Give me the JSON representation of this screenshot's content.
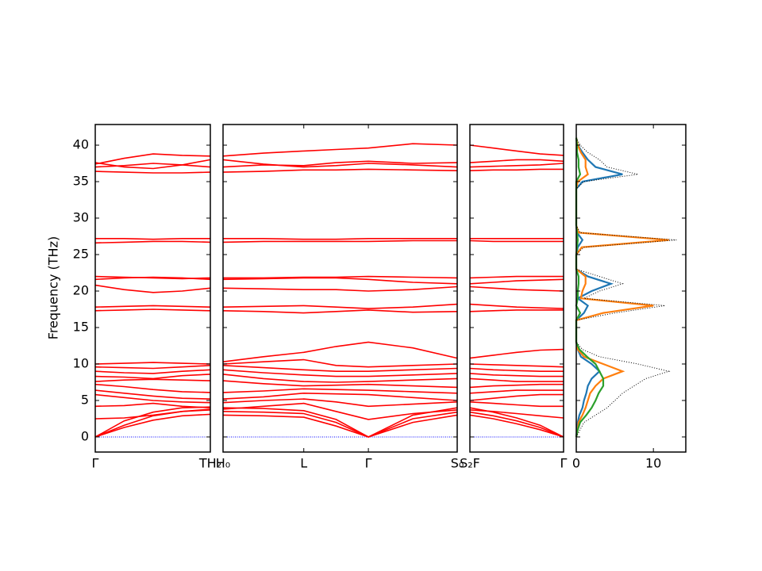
{
  "chart_data": [
    {
      "type": "line",
      "y_label": "Frequency (THz)",
      "xlim": [
        0,
        1.43
      ],
      "xticks": [
        {
          "value": 0,
          "label": "Γ"
        },
        {
          "value": 1.43,
          "label": "TH₂"
        }
      ],
      "ylim": [
        -2.07,
        42.83
      ],
      "yticks": [
        0,
        5,
        10,
        15,
        20,
        25,
        30,
        35,
        40
      ],
      "hline": 0,
      "hline_color": "#0000ff",
      "x": [
        0,
        0.36,
        0.72,
        1.08,
        1.43
      ],
      "series": [
        {
          "color": "#ff0000",
          "values": [
            0,
            1.3,
            2.3,
            2.9,
            3.1
          ]
        },
        {
          "color": "#ff0000",
          "values": [
            0,
            1.6,
            2.9,
            3.5,
            3.7
          ]
        },
        {
          "color": "#ff0000",
          "values": [
            0,
            2.2,
            3.4,
            4.0,
            4.1
          ]
        },
        {
          "color": "#ff0000",
          "values": [
            2.5,
            2.6,
            3.0,
            3.5,
            3.8
          ]
        },
        {
          "color": "#ff0000",
          "values": [
            4.2,
            4.3,
            4.6,
            4.2,
            4.0
          ]
        },
        {
          "color": "#ff0000",
          "values": [
            5.8,
            5.4,
            5.0,
            4.8,
            4.7
          ]
        },
        {
          "color": "#ff0000",
          "values": [
            6.4,
            6.0,
            5.6,
            5.3,
            5.2
          ]
        },
        {
          "color": "#ff0000",
          "values": [
            7.2,
            6.9,
            6.5,
            6.2,
            6.1
          ]
        },
        {
          "color": "#ff0000",
          "values": [
            7.6,
            7.8,
            7.9,
            7.8,
            7.7
          ]
        },
        {
          "color": "#ff0000",
          "values": [
            8.3,
            8.2,
            8.0,
            8.4,
            8.6
          ]
        },
        {
          "color": "#ff0000",
          "values": [
            9.0,
            8.8,
            8.7,
            9.0,
            9.2
          ]
        },
        {
          "color": "#ff0000",
          "values": [
            9.6,
            9.5,
            9.4,
            9.6,
            9.8
          ]
        },
        {
          "color": "#ff0000",
          "values": [
            10.0,
            10.1,
            10.2,
            10.1,
            10.0
          ]
        },
        {
          "color": "#ff0000",
          "values": [
            17.3,
            17.4,
            17.5,
            17.4,
            17.3
          ]
        },
        {
          "color": "#ff0000",
          "values": [
            17.8,
            17.9,
            18.0,
            17.9,
            17.8
          ]
        },
        {
          "color": "#ff0000",
          "values": [
            20.8,
            20.2,
            19.8,
            20.0,
            20.4
          ]
        },
        {
          "color": "#ff0000",
          "values": [
            21.6,
            21.8,
            21.9,
            21.8,
            21.6
          ]
        },
        {
          "color": "#ff0000",
          "values": [
            22.0,
            21.9,
            21.8,
            21.7,
            21.8
          ]
        },
        {
          "color": "#ff0000",
          "values": [
            26.6,
            26.7,
            26.8,
            26.8,
            26.7
          ]
        },
        {
          "color": "#ff0000",
          "values": [
            27.2,
            27.2,
            27.1,
            27.2,
            27.2
          ]
        },
        {
          "color": "#ff0000",
          "values": [
            36.4,
            36.3,
            36.2,
            36.2,
            36.3
          ]
        },
        {
          "color": "#ff0000",
          "values": [
            37.6,
            37.0,
            36.8,
            37.3,
            38.0
          ]
        },
        {
          "color": "#ff0000",
          "values": [
            37.4,
            38.2,
            38.8,
            38.6,
            38.5
          ]
        },
        {
          "color": "#ff0000",
          "values": [
            37.0,
            37.2,
            37.5,
            37.3,
            37.0
          ]
        }
      ]
    },
    {
      "type": "line",
      "xlim": [
        0,
        2.9
      ],
      "xticks": [
        {
          "value": 0,
          "label": "H₀"
        },
        {
          "value": 1.0,
          "label": "L"
        },
        {
          "value": 1.8,
          "label": "Γ"
        },
        {
          "value": 2.9,
          "label": "S₀"
        }
      ],
      "ylim": [
        -2.07,
        42.83
      ],
      "yticks": [
        0,
        5,
        10,
        15,
        20,
        25,
        30,
        35,
        40
      ],
      "hline": 0,
      "hline_color": "#0000ff",
      "x": [
        0,
        0.5,
        1.0,
        1.4,
        1.8,
        2.35,
        2.9
      ],
      "series": [
        {
          "color": "#ff0000",
          "values": [
            3.0,
            2.9,
            2.7,
            1.5,
            0,
            2.0,
            3.0
          ]
        },
        {
          "color": "#ff0000",
          "values": [
            3.5,
            3.4,
            3.2,
            2.0,
            0,
            2.5,
            3.4
          ]
        },
        {
          "color": "#ff0000",
          "values": [
            4.0,
            3.9,
            3.6,
            2.4,
            0,
            3.0,
            4.0
          ]
        },
        {
          "color": "#ff0000",
          "values": [
            3.8,
            4.2,
            4.6,
            3.5,
            2.4,
            3.2,
            3.7
          ]
        },
        {
          "color": "#ff0000",
          "values": [
            4.7,
            5.0,
            5.2,
            4.8,
            4.2,
            4.5,
            4.8
          ]
        },
        {
          "color": "#ff0000",
          "values": [
            5.2,
            5.5,
            6.0,
            5.9,
            5.8,
            5.4,
            5.0
          ]
        },
        {
          "color": "#ff0000",
          "values": [
            6.1,
            6.3,
            6.6,
            6.5,
            6.4,
            6.2,
            6.0
          ]
        },
        {
          "color": "#ff0000",
          "values": [
            7.7,
            7.3,
            7.0,
            7.1,
            7.2,
            7.0,
            6.8
          ]
        },
        {
          "color": "#ff0000",
          "values": [
            8.6,
            8.0,
            7.6,
            7.5,
            7.6,
            7.8,
            8.0
          ]
        },
        {
          "color": "#ff0000",
          "values": [
            9.2,
            8.8,
            8.5,
            8.3,
            8.3,
            8.5,
            8.7
          ]
        },
        {
          "color": "#ff0000",
          "values": [
            9.8,
            9.5,
            9.2,
            9.0,
            9.0,
            9.2,
            9.4
          ]
        },
        {
          "color": "#ff0000",
          "values": [
            10.0,
            10.3,
            10.6,
            9.8,
            9.6,
            9.8,
            10.0
          ]
        },
        {
          "color": "#ff0000",
          "values": [
            10.3,
            11.0,
            11.6,
            12.4,
            13.0,
            12.2,
            10.8
          ]
        },
        {
          "color": "#ff0000",
          "values": [
            17.3,
            17.2,
            17.0,
            17.2,
            17.4,
            17.1,
            17.2
          ]
        },
        {
          "color": "#ff0000",
          "values": [
            17.8,
            17.9,
            18.0,
            17.8,
            17.6,
            17.8,
            18.2
          ]
        },
        {
          "color": "#ff0000",
          "values": [
            20.4,
            20.3,
            20.2,
            20.2,
            20.0,
            20.2,
            20.6
          ]
        },
        {
          "color": "#ff0000",
          "values": [
            21.6,
            21.7,
            21.8,
            21.8,
            21.6,
            21.2,
            21.0
          ]
        },
        {
          "color": "#ff0000",
          "values": [
            21.8,
            21.8,
            21.9,
            21.9,
            22.0,
            21.9,
            21.8
          ]
        },
        {
          "color": "#ff0000",
          "values": [
            26.7,
            26.8,
            26.8,
            26.8,
            26.8,
            26.9,
            26.9
          ]
        },
        {
          "color": "#ff0000",
          "values": [
            27.2,
            27.2,
            27.1,
            27.1,
            27.2,
            27.2,
            27.2
          ]
        },
        {
          "color": "#ff0000",
          "values": [
            36.3,
            36.4,
            36.6,
            36.6,
            36.7,
            36.6,
            36.5
          ]
        },
        {
          "color": "#ff0000",
          "values": [
            38.0,
            37.4,
            37.0,
            37.2,
            37.5,
            37.3,
            37.0
          ]
        },
        {
          "color": "#ff0000",
          "values": [
            38.5,
            38.9,
            39.2,
            39.4,
            39.6,
            40.2,
            40.0
          ]
        },
        {
          "color": "#ff0000",
          "values": [
            37.0,
            37.3,
            37.2,
            37.6,
            37.8,
            37.5,
            37.6
          ]
        }
      ]
    },
    {
      "type": "line",
      "xlim": [
        0,
        1.16
      ],
      "xticks": [
        {
          "value": 0,
          "label": "S₂F"
        },
        {
          "value": 1.16,
          "label": "Γ"
        }
      ],
      "ylim": [
        -2.07,
        42.83
      ],
      "yticks": [
        0,
        5,
        10,
        15,
        20,
        25,
        30,
        35,
        40
      ],
      "hline": 0,
      "hline_color": "#0000ff",
      "x": [
        0,
        0.29,
        0.58,
        0.87,
        1.16
      ],
      "series": [
        {
          "color": "#ff0000",
          "values": [
            3.0,
            2.5,
            1.8,
            1.0,
            0
          ]
        },
        {
          "color": "#ff0000",
          "values": [
            3.4,
            2.9,
            2.2,
            1.3,
            0
          ]
        },
        {
          "color": "#ff0000",
          "values": [
            4.0,
            3.4,
            2.6,
            1.6,
            0
          ]
        },
        {
          "color": "#ff0000",
          "values": [
            3.7,
            3.5,
            3.2,
            2.9,
            2.6
          ]
        },
        {
          "color": "#ff0000",
          "values": [
            4.8,
            4.6,
            4.4,
            4.2,
            4.2
          ]
        },
        {
          "color": "#ff0000",
          "values": [
            5.0,
            5.3,
            5.6,
            5.8,
            5.8
          ]
        },
        {
          "color": "#ff0000",
          "values": [
            6.0,
            6.2,
            6.4,
            6.4,
            6.4
          ]
        },
        {
          "color": "#ff0000",
          "values": [
            6.8,
            7.0,
            7.1,
            7.2,
            7.2
          ]
        },
        {
          "color": "#ff0000",
          "values": [
            8.0,
            7.8,
            7.6,
            7.6,
            7.6
          ]
        },
        {
          "color": "#ff0000",
          "values": [
            8.7,
            8.5,
            8.4,
            8.3,
            8.3
          ]
        },
        {
          "color": "#ff0000",
          "values": [
            9.4,
            9.2,
            9.1,
            9.0,
            9.0
          ]
        },
        {
          "color": "#ff0000",
          "values": [
            10.0,
            9.9,
            9.8,
            9.7,
            9.6
          ]
        },
        {
          "color": "#ff0000",
          "values": [
            10.8,
            11.2,
            11.6,
            11.9,
            12.0
          ]
        },
        {
          "color": "#ff0000",
          "values": [
            17.2,
            17.3,
            17.4,
            17.4,
            17.4
          ]
        },
        {
          "color": "#ff0000",
          "values": [
            18.2,
            18.0,
            17.8,
            17.7,
            17.6
          ]
        },
        {
          "color": "#ff0000",
          "values": [
            20.6,
            20.4,
            20.2,
            20.1,
            20.0
          ]
        },
        {
          "color": "#ff0000",
          "values": [
            21.0,
            21.2,
            21.4,
            21.5,
            21.6
          ]
        },
        {
          "color": "#ff0000",
          "values": [
            21.8,
            21.9,
            22.0,
            22.0,
            22.0
          ]
        },
        {
          "color": "#ff0000",
          "values": [
            26.9,
            26.8,
            26.8,
            26.8,
            26.8
          ]
        },
        {
          "color": "#ff0000",
          "values": [
            27.2,
            27.2,
            27.2,
            27.2,
            27.2
          ]
        },
        {
          "color": "#ff0000",
          "values": [
            36.5,
            36.6,
            36.6,
            36.7,
            36.7
          ]
        },
        {
          "color": "#ff0000",
          "values": [
            37.0,
            37.1,
            37.2,
            37.3,
            37.5
          ]
        },
        {
          "color": "#ff0000",
          "values": [
            40.0,
            39.6,
            39.2,
            38.8,
            38.6
          ]
        },
        {
          "color": "#ff0000",
          "values": [
            37.6,
            37.8,
            38.0,
            38.0,
            37.8
          ]
        }
      ]
    },
    {
      "type": "dos",
      "xlim": [
        0,
        14.2
      ],
      "xticks": [
        0,
        10
      ],
      "ylim": [
        -2.07,
        42.83
      ],
      "yticks": [
        0,
        5,
        10,
        15,
        20,
        25,
        30,
        35,
        40
      ],
      "y": [
        0,
        1,
        2,
        3,
        4,
        5,
        6,
        7,
        8,
        9,
        10,
        11,
        12,
        13,
        14,
        15,
        16,
        17,
        18,
        19,
        20,
        21,
        22,
        23,
        24,
        25,
        26,
        27,
        28,
        29,
        30,
        31,
        32,
        33,
        34,
        35,
        36,
        37,
        38,
        39,
        40,
        41
      ],
      "series": [
        {
          "color": "#1f77b4",
          "values": [
            0,
            0.1,
            0.2,
            0.4,
            0.8,
            1.0,
            1.3,
            1.5,
            2.0,
            3.0,
            2.0,
            0.6,
            0.2,
            0,
            0,
            0,
            0,
            1.0,
            1.5,
            0.2,
            2.0,
            4.5,
            1.5,
            0,
            0,
            0,
            0.2,
            0.8,
            0.1,
            0,
            0,
            0,
            0,
            0,
            0,
            0.8,
            6.0,
            2.5,
            1.5,
            0.8,
            0.2,
            0
          ]
        },
        {
          "color": "#ff7f0e",
          "values": [
            0,
            0.2,
            0.3,
            0.8,
            1.2,
            1.5,
            1.8,
            2.5,
            3.5,
            6.0,
            3.5,
            1.0,
            0.2,
            0,
            0,
            0,
            0,
            3.5,
            10.0,
            0.6,
            0.8,
            1.2,
            1.2,
            0,
            0,
            0,
            0.7,
            12.0,
            0.3,
            0,
            0,
            0,
            0,
            0,
            0,
            0.2,
            1.5,
            1.2,
            1.2,
            0.6,
            0.2,
            0
          ]
        },
        {
          "color": "#2ca02c",
          "values": [
            0,
            0.2,
            0.5,
            1.3,
            2.0,
            2.5,
            2.9,
            3.5,
            3.5,
            3.0,
            2.5,
            1.4,
            0.4,
            0,
            0,
            0,
            0,
            0.5,
            0,
            0.2,
            0.2,
            0.3,
            0.3,
            0,
            0,
            0,
            0.1,
            0.2,
            0.1,
            0,
            0,
            0,
            0,
            0,
            0,
            0,
            0.5,
            0.3,
            0.3,
            0.1,
            0.1,
            0
          ]
        },
        {
          "color": "#000000",
          "dash": true,
          "values": [
            0,
            0.5,
            1,
            2.5,
            4,
            5,
            6,
            7.5,
            9,
            12,
            8,
            3,
            0.8,
            0,
            0,
            0,
            0,
            5,
            11.5,
            1,
            3,
            6,
            3,
            0,
            0,
            0,
            1,
            13,
            0.5,
            0,
            0,
            0,
            0,
            0,
            0,
            1,
            8,
            4,
            3,
            1.5,
            0.5,
            0
          ]
        }
      ]
    }
  ]
}
